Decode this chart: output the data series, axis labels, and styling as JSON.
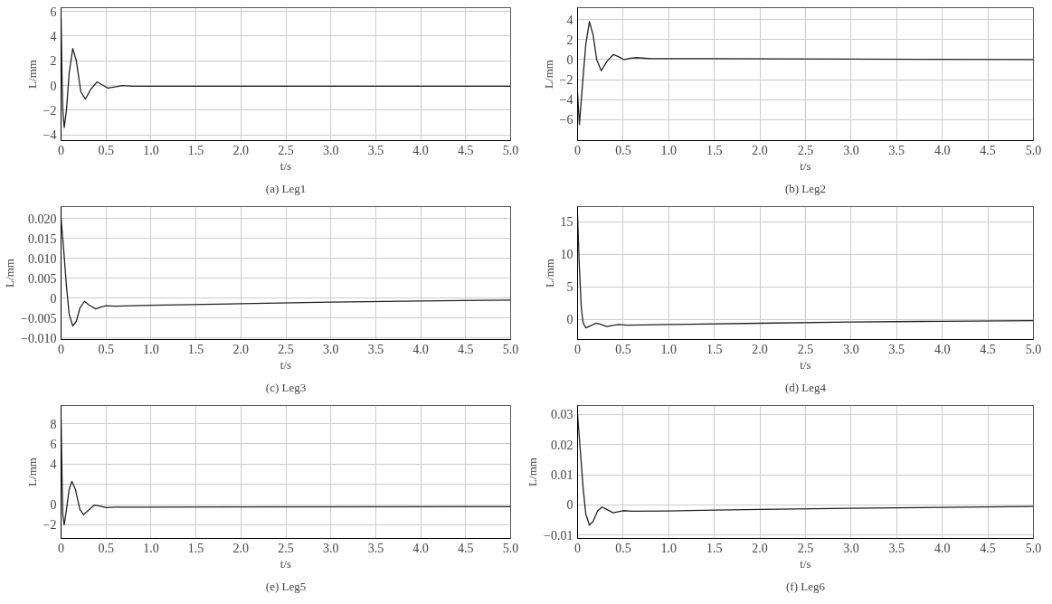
{
  "chart_data": [
    {
      "type": "line",
      "title": "(a) Leg1",
      "xlabel": "t/s",
      "ylabel": "L/mm",
      "xlim": [
        0,
        5
      ],
      "ylim": [
        -4.45,
        6.3
      ],
      "grid": true,
      "xticks": [
        0,
        0.5,
        {
          "value": 1,
          "label": "1.0"
        },
        1.5,
        {
          "value": 2,
          "label": "2.0"
        },
        2.5,
        {
          "value": 3,
          "label": "3.0"
        },
        3.5,
        {
          "value": 4,
          "label": "4.0"
        },
        4.5,
        {
          "value": 5,
          "label": "5.0"
        }
      ],
      "yticks": [
        -4,
        -2,
        0,
        2,
        4,
        6
      ],
      "series": [
        {
          "color": "#222222",
          "x": [
            0,
            0.01,
            0.02,
            0.035,
            0.06,
            0.09,
            0.13,
            0.17,
            0.22,
            0.27,
            0.33,
            0.4,
            0.46,
            0.52,
            0.6,
            0.68,
            0.8,
            1,
            5
          ],
          "values": [
            5.5,
            1,
            -2,
            -3.4,
            -2,
            1,
            3.0,
            2,
            -0.5,
            -1.1,
            -0.3,
            0.3,
            0.05,
            -0.2,
            -0.1,
            0.0,
            -0.05,
            -0.05,
            -0.05
          ]
        }
      ]
    },
    {
      "type": "line",
      "title": "(b) Leg2",
      "xlabel": "t/s",
      "ylabel": "L/mm",
      "xlim": [
        0,
        5
      ],
      "ylim": [
        -8.1,
        5.2
      ],
      "grid": true,
      "xticks": [
        0,
        0.5,
        {
          "value": 1,
          "label": "1.0"
        },
        1.5,
        {
          "value": 2,
          "label": "2.0"
        },
        2.5,
        {
          "value": 3,
          "label": "3.0"
        },
        3.5,
        {
          "value": 4,
          "label": "4.0"
        },
        4.5,
        {
          "value": 5,
          "label": "5.0"
        }
      ],
      "yticks": [
        -6,
        -4,
        -2,
        0,
        2,
        4
      ],
      "series": [
        {
          "color": "#222222",
          "x": [
            0,
            0.02,
            0.05,
            0.09,
            0.13,
            0.17,
            0.21,
            0.26,
            0.32,
            0.39,
            0.45,
            0.51,
            0.58,
            0.65,
            0.8,
            1.5,
            3,
            5
          ],
          "values": [
            -3.3,
            -6.5,
            -3,
            1.5,
            3.8,
            2.5,
            0,
            -1.1,
            -0.2,
            0.5,
            0.3,
            0.0,
            0.15,
            0.2,
            0.1,
            0.1,
            0.05,
            0.0
          ]
        }
      ]
    },
    {
      "type": "line",
      "title": "(c) Leg3",
      "xlabel": "t/s",
      "ylabel": "L/mm",
      "xlim": [
        0,
        5
      ],
      "ylim": [
        -0.0104,
        0.023
      ],
      "grid": true,
      "xticks": [
        0,
        0.5,
        {
          "value": 1,
          "label": "1.0"
        },
        1.5,
        {
          "value": 2,
          "label": "2.0"
        },
        2.5,
        {
          "value": 3,
          "label": "3.0"
        },
        3.5,
        {
          "value": 4,
          "label": "4.0"
        },
        4.5,
        {
          "value": 5,
          "label": "5.0"
        }
      ],
      "yticks": [
        {
          "value": -0.01,
          "label": "−0.010"
        },
        {
          "value": -0.005,
          "label": "−0.005"
        },
        0,
        0.005,
        {
          "value": 0.01,
          "label": "0.010"
        },
        0.015,
        {
          "value": 0.02,
          "label": "0.020"
        }
      ],
      "series": [
        {
          "color": "#222222",
          "x": [
            0,
            0.03,
            0.06,
            0.09,
            0.13,
            0.17,
            0.21,
            0.26,
            0.31,
            0.385,
            0.45,
            0.5,
            0.6,
            1,
            2,
            3,
            4,
            5
          ],
          "values": [
            0.02,
            0.012,
            0.003,
            -0.004,
            -0.007,
            -0.0058,
            -0.0025,
            -0.0008,
            -0.0017,
            -0.0027,
            -0.0022,
            -0.0019,
            -0.002,
            -0.0018,
            -0.0014,
            -0.001,
            -0.0007,
            -0.0005
          ]
        }
      ]
    },
    {
      "type": "line",
      "title": "(d) Leg4",
      "xlabel": "t/s",
      "ylabel": "L/mm",
      "xlim": [
        0,
        5
      ],
      "ylim": [
        -3.1,
        17.3
      ],
      "grid": true,
      "xticks": [
        0,
        0.5,
        {
          "value": 1,
          "label": "1.0"
        },
        1.5,
        {
          "value": 2,
          "label": "2.0"
        },
        2.5,
        {
          "value": 3,
          "label": "3.0"
        },
        3.5,
        {
          "value": 4,
          "label": "4.0"
        },
        4.5,
        {
          "value": 5,
          "label": "5.0"
        }
      ],
      "yticks": [
        0,
        5,
        10,
        15
      ],
      "series": [
        {
          "color": "#222222",
          "x": [
            0,
            0.02,
            0.04,
            0.06,
            0.09,
            0.14,
            0.2,
            0.26,
            0.32,
            0.4,
            0.45,
            0.55,
            1,
            2,
            3,
            4,
            5
          ],
          "values": [
            16,
            8,
            2,
            -0.5,
            -1.3,
            -1.0,
            -0.6,
            -0.8,
            -1.1,
            -0.9,
            -0.8,
            -0.9,
            -0.8,
            -0.6,
            -0.4,
            -0.3,
            -0.2
          ]
        }
      ]
    },
    {
      "type": "line",
      "title": "(e) Leg5",
      "xlabel": "t/s",
      "ylabel": "L/mm",
      "xlim": [
        0,
        5
      ],
      "ylim": [
        -3.35,
        9.8
      ],
      "grid": true,
      "xticks": [
        0,
        0.5,
        {
          "value": 1,
          "label": "1.0"
        },
        1.5,
        {
          "value": 2,
          "label": "2.0"
        },
        2.5,
        {
          "value": 3,
          "label": "3.0"
        },
        3.5,
        {
          "value": 4,
          "label": "4.0"
        },
        4.5,
        {
          "value": 5,
          "label": "5.0"
        }
      ],
      "yticks": [
        {
          "value": -2,
          "label": "−2"
        },
        0,
        {
          "value": 2,
          "label": null
        },
        4,
        6,
        8
      ],
      "series": [
        {
          "color": "#222222",
          "x": [
            0,
            0.01,
            0.02,
            0.035,
            0.06,
            0.09,
            0.12,
            0.16,
            0.21,
            0.25,
            0.3,
            0.37,
            0.43,
            0.5,
            0.6,
            1,
            5
          ],
          "values": [
            8.5,
            3,
            -1,
            -2.0,
            -0.5,
            1.5,
            2.3,
            1.5,
            -0.5,
            -1.0,
            -0.6,
            -0.05,
            -0.15,
            -0.3,
            -0.25,
            -0.25,
            -0.2
          ]
        }
      ]
    },
    {
      "type": "line",
      "title": "(f) Leg6",
      "xlabel": "t/s",
      "ylabel": "L/mm",
      "xlim": [
        0,
        5
      ],
      "ylim": [
        -0.0111,
        0.0329
      ],
      "grid": true,
      "xticks": [
        0,
        0.5,
        {
          "value": 1,
          "label": "1.0"
        },
        1.5,
        {
          "value": 2,
          "label": "2.0"
        },
        2.5,
        {
          "value": 3,
          "label": "3.0"
        },
        3.5,
        {
          "value": 4,
          "label": "4.0"
        },
        4.5,
        {
          "value": 5,
          "label": "5.0"
        }
      ],
      "yticks": [
        {
          "value": -0.01,
          "label": "−0.01"
        },
        0,
        0.01,
        0.02,
        0.03
      ],
      "series": [
        {
          "color": "#222222",
          "x": [
            0,
            0.03,
            0.06,
            0.09,
            0.13,
            0.17,
            0.22,
            0.27,
            0.32,
            0.39,
            0.45,
            0.5,
            0.6,
            1,
            2,
            3,
            4,
            5
          ],
          "values": [
            0.03,
            0.018,
            0.006,
            -0.003,
            -0.0067,
            -0.0055,
            -0.002,
            -0.0007,
            -0.0015,
            -0.0026,
            -0.0022,
            -0.0019,
            -0.0021,
            -0.002,
            -0.0015,
            -0.0011,
            -0.0008,
            -0.0005
          ]
        }
      ]
    }
  ]
}
